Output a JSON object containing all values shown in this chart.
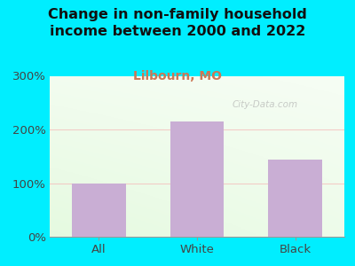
{
  "title": "Change in non-family household\nincome between 2000 and 2022",
  "subtitle": "Lilbourn, MO",
  "categories": [
    "All",
    "White",
    "Black"
  ],
  "values": [
    100,
    215,
    143
  ],
  "bar_color": "#c9aed4",
  "ylim": [
    0,
    300
  ],
  "yticks": [
    0,
    100,
    200,
    300
  ],
  "ytick_labels": [
    "0%",
    "100%",
    "200%",
    "300%"
  ],
  "title_fontsize": 11.5,
  "subtitle_fontsize": 10,
  "tick_fontsize": 9.5,
  "background_outer": "#00eeff",
  "grid_color": "#f5b8b8",
  "watermark": "City-Data.com",
  "subtitle_color": "#cc7755",
  "title_color": "#111111"
}
